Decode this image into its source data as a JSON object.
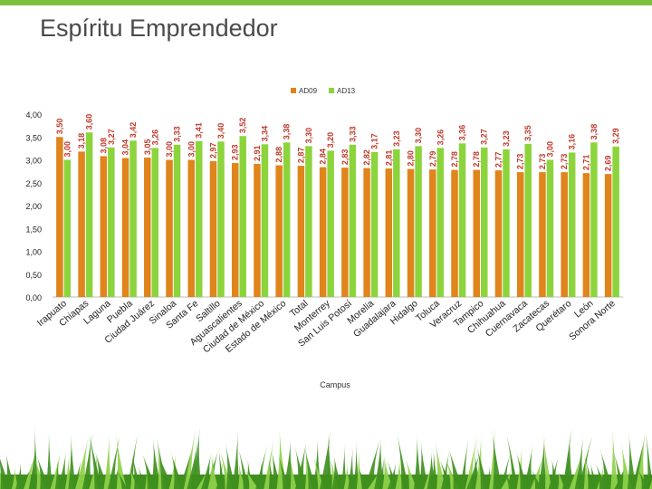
{
  "slide": {
    "title": "Espíritu Emprendedor"
  },
  "colors": {
    "series1": "#e0841c",
    "series2": "#8cd43c",
    "accent": "#7fbf3f",
    "grass_dark": "#3f8f1f",
    "grass_light": "#8fd14a"
  },
  "decor": {
    "grass_icon": "grass-icon"
  },
  "chart_data": {
    "type": "bar",
    "xlabel": "Campus",
    "ylabel": "",
    "ylim": [
      0,
      4
    ],
    "yticks": [
      "0,00",
      "0,50",
      "1,00",
      "1,50",
      "2,00",
      "2,50",
      "3,00",
      "3,50",
      "4,00"
    ],
    "grid": false,
    "legend": "top-center",
    "categories": [
      "Irapuato",
      "Chiapas",
      "Laguna",
      "Puebla",
      "Ciudad Juárez",
      "Sinaloa",
      "Santa Fe",
      "Saltillo",
      "Aguascalientes",
      "Ciudad de México",
      "Estado de México",
      "Total",
      "Monterrey",
      "San Luis Potosí",
      "Morelia",
      "Guadalajara",
      "Hidalgo",
      "Toluca",
      "Veracruz",
      "Tampico",
      "Chihuahua",
      "Cuernavaca",
      "Zacatecas",
      "Querétaro",
      "León",
      "Sonora Norte"
    ],
    "series": [
      {
        "name": "AD09",
        "values": [
          3.5,
          3.18,
          3.08,
          3.04,
          3.05,
          3.0,
          3.0,
          2.97,
          2.93,
          2.91,
          2.88,
          2.87,
          2.84,
          2.83,
          2.82,
          2.81,
          2.8,
          2.79,
          2.78,
          2.78,
          2.77,
          2.73,
          2.73,
          2.73,
          2.71,
          2.69
        ]
      },
      {
        "name": "AD13",
        "values": [
          3.0,
          3.6,
          3.27,
          3.42,
          3.26,
          3.33,
          3.41,
          3.4,
          3.52,
          3.34,
          3.38,
          3.3,
          3.2,
          3.33,
          3.17,
          3.23,
          3.3,
          3.26,
          3.36,
          3.27,
          3.23,
          3.35,
          3.0,
          3.16,
          3.38,
          3.29
        ]
      }
    ],
    "value_labels_1": [
      "3,50",
      "3,18",
      "3,08",
      "3,04",
      "3,05",
      "3,00",
      "3,00",
      "2,97",
      "2,93",
      "2,91",
      "2,88",
      "2,87",
      "2,84",
      "2,83",
      "2,82",
      "2,81",
      "2,80",
      "2,79",
      "2,78",
      "2,78",
      "2,77",
      "2,73",
      "2,73",
      "2,73",
      "2,71",
      "2,69"
    ],
    "value_labels_2": [
      "3,00",
      "3,60",
      "3,27",
      "3,42",
      "3,26",
      "3,33",
      "3,41",
      "3,40",
      "3,52",
      "3,34",
      "3,38",
      "3,30",
      "3,20",
      "3,33",
      "3,17",
      "3,23",
      "3,30",
      "3,26",
      "3,36",
      "3,27",
      "3,23",
      "3,35",
      "3,00",
      "3,16",
      "3,38",
      "3,29"
    ]
  }
}
